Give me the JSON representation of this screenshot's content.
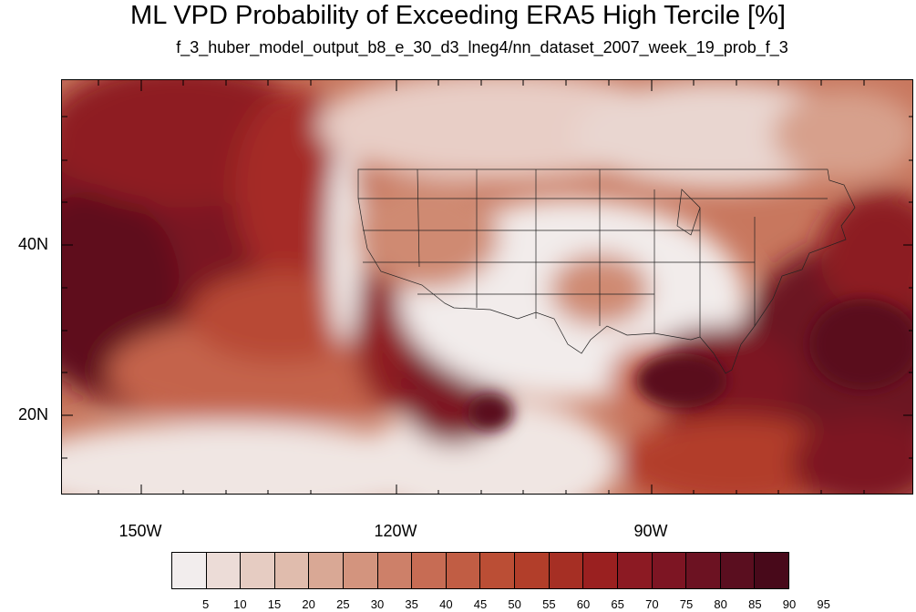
{
  "title": "ML VPD Probability of Exceeding ERA5 High Tercile [%]",
  "subtitle": "f_3_huber_model_output_b8_e_30_d3_lneg4/nn_dataset_2007_week_19_prob_f_3",
  "map": {
    "lat_labels": [
      "40N",
      "20N"
    ],
    "lon_labels": [
      "150W",
      "120W",
      "90W"
    ]
  },
  "colorbar": {
    "colors": [
      "#f2eded",
      "#ecdcd7",
      "#e6ccc2",
      "#e0bcad",
      "#d9a895",
      "#d3947e",
      "#cd8069",
      "#c76c54",
      "#c15d44",
      "#bb4e35",
      "#b23e2a",
      "#a62f24",
      "#9a2020",
      "#8c1a23",
      "#7d1523",
      "#6c1222",
      "#5a0e1f",
      "#48091a"
    ],
    "labels": [
      "5",
      "10",
      "15",
      "20",
      "25",
      "30",
      "35",
      "40",
      "45",
      "50",
      "55",
      "60",
      "65",
      "70",
      "75",
      "80",
      "85",
      "90",
      "95"
    ]
  }
}
